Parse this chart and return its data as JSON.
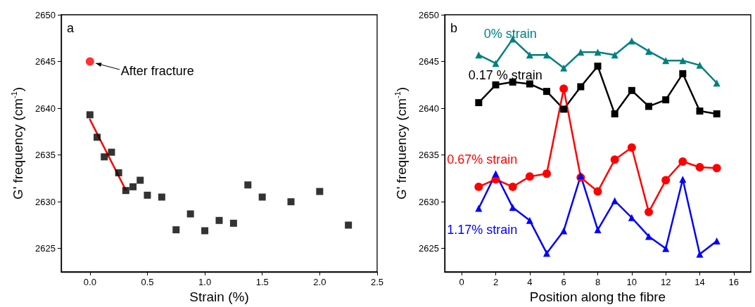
{
  "chart_data": [
    {
      "type": "scatter",
      "xlabel": "Strain (%)",
      "ylabel": "G' frequency (cm$^{-1}$)",
      "xlim": [
        -0.25,
        2.5
      ],
      "xticks": [
        {
          "value": 0,
          "label": "0.0"
        },
        0.5,
        {
          "value": 1,
          "label": "1.0"
        },
        1.5,
        {
          "value": 2,
          "label": "2.0"
        },
        2.5
      ],
      "ylim": [
        2622.5,
        2650
      ],
      "yticks": [
        2625,
        2630,
        2635,
        2640,
        2645,
        2650
      ],
      "grid": false,
      "legend": false,
      "annotations": [
        "a",
        {
          "text": "After fracture",
          "x": 0,
          "y": 2645
        }
      ],
      "series": [
        {
          "color": "#000000",
          "marker": "square",
          "x": [
            0,
            0.0625,
            0.125,
            0.1875,
            0.25,
            0.3125,
            0.375,
            0.4375,
            0.5,
            0.625,
            0.75,
            0.875,
            1.0,
            1.125,
            1.25,
            1.375,
            1.5,
            1.75,
            2.0,
            2.25
          ],
          "values": [
            2639.3,
            2636.9,
            2634.8,
            2635.3,
            2633.1,
            2631.2,
            2631.6,
            2632.3,
            2630.7,
            2630.5,
            2627.0,
            2628.7,
            2626.9,
            2628.0,
            2627.7,
            2631.8,
            2630.5,
            2630.0,
            2631.1,
            2627.5
          ]
        },
        {
          "color": "#ff0000",
          "marker": "circle",
          "x": [
            0
          ],
          "values": [
            2645
          ]
        },
        {
          "type": "line",
          "color": "#ff0000",
          "marker": "none",
          "x": [
            0,
            0.31
          ],
          "values": [
            2638.8,
            2631.3
          ]
        }
      ]
    },
    {
      "type": "line",
      "xlabel": "Position along the fibre",
      "ylabel": "G' frequency (cm$^{-1}$)",
      "xlim": [
        -1,
        17
      ],
      "xticks": [
        0,
        2,
        4,
        6,
        8,
        10,
        12,
        14,
        16
      ],
      "ylim": [
        2622.5,
        2650
      ],
      "yticks": [
        2625,
        2630,
        2635,
        2640,
        2645,
        2650
      ],
      "grid": false,
      "legend": false,
      "annotations": [
        "b"
      ],
      "x": [
        1,
        2,
        3,
        4,
        5,
        6,
        7,
        8,
        9,
        10,
        11,
        12,
        13,
        14,
        15
      ],
      "series": [
        {
          "name": "0% strain",
          "color": "#008080",
          "marker": "triangle",
          "values": [
            2645.7,
            2644.8,
            2647.4,
            2645.7,
            2645.7,
            2644.3,
            2646.0,
            2646.0,
            2645.7,
            2647.2,
            2646.1,
            2645.1,
            2645.1,
            2644.6,
            2642.7
          ]
        },
        {
          "name": "0.17 % strain",
          "color": "#000000",
          "marker": "square",
          "values": [
            2640.6,
            2642.5,
            2642.8,
            2642.6,
            2641.8,
            2639.9,
            2642.3,
            2644.5,
            2639.4,
            2641.9,
            2640.2,
            2640.9,
            2643.7,
            2639.7,
            2639.4
          ]
        },
        {
          "name": "0.67% strain",
          "color": "#ff0000",
          "marker": "circle",
          "values": [
            2631.6,
            2632.4,
            2631.6,
            2632.7,
            2633.0,
            2642.1,
            2632.6,
            2631.1,
            2634.5,
            2635.8,
            2628.9,
            2632.3,
            2634.3,
            2633.7,
            2633.6
          ]
        },
        {
          "name": "1.17% strain",
          "color": "#0000ff",
          "marker": "triangle",
          "values": [
            2629.3,
            2633.0,
            2629.4,
            2628.0,
            2624.5,
            2626.9,
            2632.8,
            2627.0,
            2630.1,
            2628.3,
            2626.3,
            2625.0,
            2632.4,
            2624.4,
            2625.8
          ]
        }
      ]
    }
  ]
}
